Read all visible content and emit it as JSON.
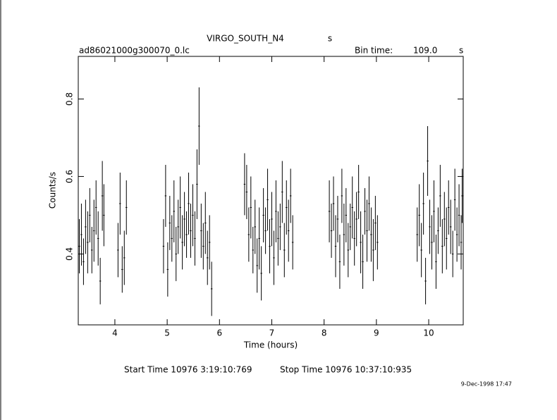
{
  "chart_data": {
    "type": "errorbar",
    "title": "VIRGO_SOUTH_N4",
    "title_unit": "s",
    "file_label": "ad86021000g300070_0.lc",
    "bin_label": "Bin time:",
    "bin_value": "109.0",
    "bin_unit": "s",
    "y_label": "Counts/s",
    "x_label": "Time (hours)",
    "start_label": "Start Time 10976  3:19:10:769",
    "stop_label": "Stop Time 10976 10:37:10:935",
    "date_label": "9-Dec-1998 17:47",
    "color": "#000000",
    "xlim": [
      3.3,
      10.66
    ],
    "xticks": [
      4,
      5,
      6,
      7,
      8,
      9,
      10
    ],
    "ylim": [
      0.217,
      0.91
    ],
    "yticks": [
      0.4,
      0.6,
      0.8
    ],
    "x": [
      3.32,
      3.36,
      3.4,
      3.44,
      3.48,
      3.52,
      3.56,
      3.6,
      3.64,
      3.68,
      3.72,
      3.76,
      3.79,
      4.06,
      4.1,
      4.14,
      4.18,
      4.22,
      4.93,
      4.97,
      5.01,
      5.05,
      5.09,
      5.13,
      5.17,
      5.21,
      5.25,
      5.29,
      5.33,
      5.37,
      5.41,
      5.45,
      5.49,
      5.53,
      5.57,
      5.61,
      5.65,
      5.69,
      5.73,
      5.77,
      5.81,
      5.85,
      6.48,
      6.52,
      6.56,
      6.6,
      6.64,
      6.68,
      6.72,
      6.76,
      6.8,
      6.84,
      6.88,
      6.92,
      6.96,
      7.0,
      7.04,
      7.08,
      7.12,
      7.16,
      7.2,
      7.24,
      7.28,
      7.32,
      7.36,
      7.4,
      8.1,
      8.14,
      8.18,
      8.22,
      8.26,
      8.3,
      8.34,
      8.38,
      8.42,
      8.46,
      8.5,
      8.54,
      8.58,
      8.62,
      8.66,
      8.7,
      8.74,
      8.78,
      8.82,
      8.86,
      8.9,
      8.94,
      8.98,
      9.02,
      9.78,
      9.82,
      9.86,
      9.9,
      9.94,
      9.98,
      10.02,
      10.06,
      10.1,
      10.14,
      10.18,
      10.22,
      10.26,
      10.3,
      10.34,
      10.38,
      10.42,
      10.46,
      10.5,
      10.54,
      10.58,
      10.62,
      10.64
    ],
    "values": [
      0.42,
      0.45,
      0.38,
      0.47,
      0.43,
      0.5,
      0.41,
      0.46,
      0.52,
      0.44,
      0.33,
      0.55,
      0.5,
      0.41,
      0.53,
      0.36,
      0.39,
      0.52,
      0.42,
      0.55,
      0.36,
      0.48,
      0.44,
      0.51,
      0.4,
      0.47,
      0.52,
      0.43,
      0.49,
      0.45,
      0.53,
      0.46,
      0.5,
      0.44,
      0.58,
      0.73,
      0.46,
      0.42,
      0.48,
      0.39,
      0.43,
      0.31,
      0.58,
      0.56,
      0.45,
      0.52,
      0.41,
      0.47,
      0.37,
      0.44,
      0.35,
      0.5,
      0.46,
      0.54,
      0.42,
      0.49,
      0.39,
      0.51,
      0.44,
      0.47,
      0.56,
      0.41,
      0.52,
      0.46,
      0.55,
      0.43,
      0.51,
      0.46,
      0.53,
      0.42,
      0.49,
      0.38,
      0.55,
      0.45,
      0.5,
      0.41,
      0.47,
      0.52,
      0.44,
      0.49,
      0.56,
      0.43,
      0.38,
      0.51,
      0.46,
      0.53,
      0.45,
      0.41,
      0.48,
      0.43,
      0.45,
      0.5,
      0.41,
      0.53,
      0.33,
      0.64,
      0.47,
      0.43,
      0.51,
      0.38,
      0.46,
      0.55,
      0.42,
      0.49,
      0.44,
      0.52,
      0.47,
      0.4,
      0.54,
      0.45,
      0.5,
      0.43,
      0.55
    ],
    "errors": [
      0.07,
      0.08,
      0.06,
      0.07,
      0.08,
      0.07,
      0.06,
      0.08,
      0.07,
      0.07,
      0.06,
      0.09,
      0.08,
      0.07,
      0.08,
      0.06,
      0.07,
      0.07,
      0.07,
      0.08,
      0.07,
      0.07,
      0.06,
      0.08,
      0.07,
      0.07,
      0.08,
      0.07,
      0.07,
      0.06,
      0.08,
      0.07,
      0.08,
      0.07,
      0.09,
      0.1,
      0.07,
      0.06,
      0.08,
      0.07,
      0.07,
      0.07,
      0.08,
      0.07,
      0.07,
      0.08,
      0.06,
      0.07,
      0.07,
      0.08,
      0.07,
      0.07,
      0.06,
      0.08,
      0.07,
      0.07,
      0.07,
      0.08,
      0.07,
      0.06,
      0.08,
      0.07,
      0.07,
      0.08,
      0.07,
      0.07,
      0.08,
      0.07,
      0.07,
      0.08,
      0.06,
      0.07,
      0.07,
      0.08,
      0.07,
      0.07,
      0.06,
      0.08,
      0.07,
      0.07,
      0.07,
      0.08,
      0.07,
      0.06,
      0.08,
      0.07,
      0.07,
      0.08,
      0.07,
      0.07,
      0.07,
      0.08,
      0.07,
      0.08,
      0.06,
      0.09,
      0.07,
      0.07,
      0.08,
      0.07,
      0.06,
      0.08,
      0.07,
      0.07,
      0.08,
      0.07,
      0.07,
      0.06,
      0.08,
      0.07,
      0.08,
      0.07,
      0.07
    ]
  }
}
